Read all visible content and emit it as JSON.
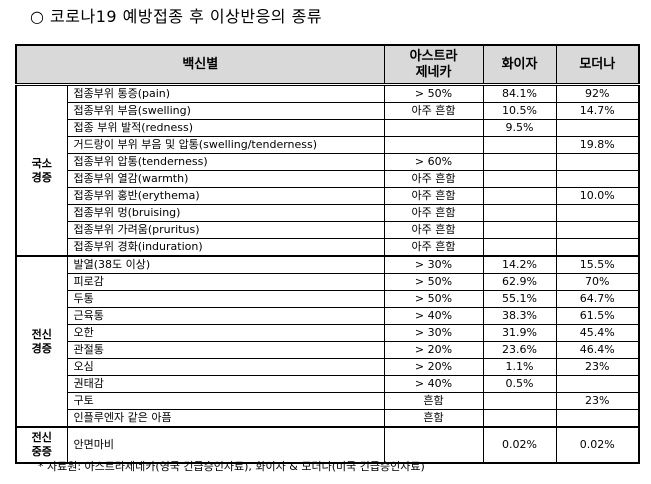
{
  "title": "○ 코로나19 예방접종 후 이상반응의 종류",
  "table": {
    "header": {
      "vaccine": "백신별",
      "astrazeneca": [
        "아스트라",
        "제네카"
      ],
      "pfizer": "화이자",
      "moderna": "모더나"
    },
    "groups": [
      {
        "label": [
          "국소",
          "경증"
        ],
        "rows": [
          {
            "item": "접종부위 통증(pain)",
            "astrazeneca": "> 50%",
            "pfizer": "84.1%",
            "moderna": "92%"
          },
          {
            "item": "접종부위 부음(swelling)",
            "astrazeneca": "아주 흔함",
            "pfizer": "10.5%",
            "moderna": "14.7%"
          },
          {
            "item": "접종 부위 발적(redness)",
            "astrazeneca": "",
            "pfizer": "9.5%",
            "moderna": ""
          },
          {
            "item": "거드랑이 부위 부음 및 압통(swelling/tenderness)",
            "astrazeneca": "",
            "pfizer": "",
            "moderna": "19.8%"
          },
          {
            "item": "접종부위 압통(tenderness)",
            "astrazeneca": "> 60%",
            "pfizer": "",
            "moderna": ""
          },
          {
            "item": "접종부위 열감(warmth)",
            "astrazeneca": "아주 흔함",
            "pfizer": "",
            "moderna": ""
          },
          {
            "item": "접종부위 홍반(erythema)",
            "astrazeneca": "아주 흔함",
            "pfizer": "",
            "moderna": "10.0%"
          },
          {
            "item": "접종부위 멍(bruising)",
            "astrazeneca": "아주 흔함",
            "pfizer": "",
            "moderna": ""
          },
          {
            "item": "접종부위 가려움(pruritus)",
            "astrazeneca": "아주 흔함",
            "pfizer": "",
            "moderna": ""
          },
          {
            "item": "접종부위 경화(induration)",
            "astrazeneca": "아주 흔함",
            "pfizer": "",
            "moderna": ""
          }
        ]
      },
      {
        "label": [
          "전신",
          "경증"
        ],
        "rows": [
          {
            "item": "발열(38도 이상)",
            "astrazeneca": "> 30%",
            "pfizer": "14.2%",
            "moderna": "15.5%"
          },
          {
            "item": "피로감",
            "astrazeneca": "> 50%",
            "pfizer": "62.9%",
            "moderna": "70%"
          },
          {
            "item": "두통",
            "astrazeneca": "> 50%",
            "pfizer": "55.1%",
            "moderna": "64.7%"
          },
          {
            "item": "근육통",
            "astrazeneca": "> 40%",
            "pfizer": "38.3%",
            "moderna": "61.5%"
          },
          {
            "item": "오한",
            "astrazeneca": "> 30%",
            "pfizer": "31.9%",
            "moderna": "45.4%"
          },
          {
            "item": "관절통",
            "astrazeneca": "> 20%",
            "pfizer": "23.6%",
            "moderna": "46.4%"
          },
          {
            "item": "오심",
            "astrazeneca": "> 20%",
            "pfizer": "1.1%",
            "moderna": "23%"
          },
          {
            "item": "권태감",
            "astrazeneca": "> 40%",
            "pfizer": "0.5%",
            "moderna": ""
          },
          {
            "item": "구토",
            "astrazeneca": "흔함",
            "pfizer": "",
            "moderna": "23%"
          },
          {
            "item": "인플루엔자 같은 아픔",
            "astrazeneca": "흔함",
            "pfizer": "",
            "moderna": ""
          }
        ]
      },
      {
        "label": [
          "전신",
          "중증"
        ],
        "rows": [
          {
            "item": "안면마비",
            "astrazeneca": "",
            "pfizer": "0.02%",
            "moderna": "0.02%"
          }
        ]
      }
    ]
  },
  "footnote": "* 자료원: 아스트라제네카(영국 긴급승인자료), 화이자 & 모더나(미국 긴급승인자료)"
}
